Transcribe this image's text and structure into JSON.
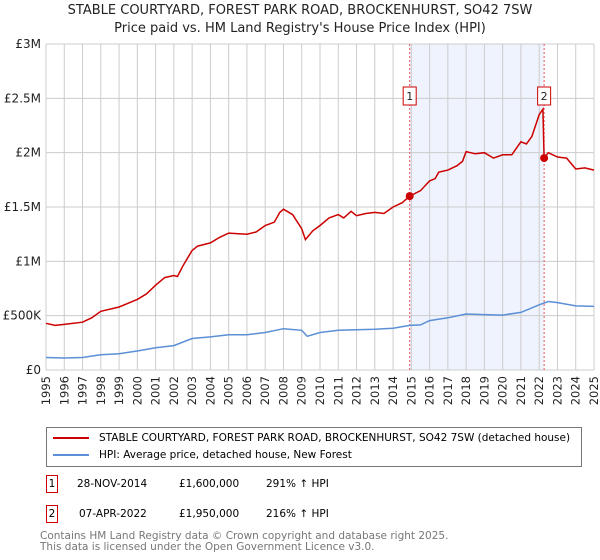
{
  "title_line1": "STABLE COURTYARD, FOREST PARK ROAD, BROCKENHURST, SO42 7SW",
  "title_line2": "Price paid vs. HM Land Registry's House Price Index (HPI)",
  "legend": {
    "property": "STABLE COURTYARD, FOREST PARK ROAD, BROCKENHURST, SO42 7SW (detached house)",
    "hpi": "HPI: Average price, detached house, New Forest"
  },
  "transactions": [
    {
      "num": "1",
      "date": "28-NOV-2014",
      "price": "£1,600,000",
      "hpi": "291% ↑ HPI"
    },
    {
      "num": "2",
      "date": "07-APR-2022",
      "price": "£1,950,000",
      "hpi": "216% ↑ HPI"
    }
  ],
  "footer": {
    "line1": "Contains HM Land Registry data © Crown copyright and database right 2025.",
    "line2": "This data is licensed under the Open Government Licence v3.0."
  },
  "colors": {
    "property": "#cc0000",
    "hpi": "#5b8fd6",
    "shade": "#eef3fd",
    "grid": "#cccccc"
  },
  "chart_data": {
    "type": "line",
    "title": "STABLE COURTYARD, FOREST PARK ROAD, BROCKENHURST, SO42 7SW",
    "subtitle": "Price paid vs. HM Land Registry's House Price Index (HPI)",
    "xlim": [
      1995,
      2025
    ],
    "ylim": [
      0,
      3000000
    ],
    "grid": true,
    "legend_placement": "below",
    "x_ticks": [
      "1995",
      "1996",
      "1997",
      "1998",
      "1999",
      "2000",
      "2001",
      "2002",
      "2003",
      "2004",
      "2005",
      "2006",
      "2007",
      "2008",
      "2009",
      "2010",
      "2011",
      "2012",
      "2013",
      "2014",
      "2015",
      "2016",
      "2017",
      "2018",
      "2019",
      "2020",
      "2021",
      "2022",
      "2023",
      "2024",
      "2025"
    ],
    "y_ticks": [
      {
        "v": 0,
        "label": "£0"
      },
      {
        "v": 500000,
        "label": "£500K"
      },
      {
        "v": 1000000,
        "label": "£1M"
      },
      {
        "v": 1500000,
        "label": "£1.5M"
      },
      {
        "v": 2000000,
        "label": "£2M"
      },
      {
        "v": 2500000,
        "label": "£2.5M"
      },
      {
        "v": 3000000,
        "label": "£3M"
      }
    ],
    "series": [
      {
        "name": "STABLE COURTYARD, FOREST PARK ROAD, BROCKENHURST, SO42 7SW (detached house)",
        "x": [
          1995,
          1995.5,
          1996,
          1997,
          1997.5,
          1998,
          1999,
          2000,
          2000.5,
          2001,
          2001.5,
          2002,
          2002.2,
          2002.5,
          2003,
          2003.3,
          2004,
          2004.5,
          2005,
          2006,
          2006.5,
          2007,
          2007.5,
          2007.8,
          2008,
          2008.5,
          2009,
          2009.2,
          2009.6,
          2010,
          2010.5,
          2011,
          2011.3,
          2011.7,
          2012,
          2012.5,
          2013,
          2013.5,
          2014,
          2014.5,
          2014.91,
          2015.5,
          2016,
          2016.3,
          2016.5,
          2017,
          2017.5,
          2017.8,
          2018,
          2018.5,
          2019,
          2019.5,
          2020,
          2020.5,
          2021,
          2021.3,
          2021.6,
          2022,
          2022.2,
          2022.27,
          2022.5,
          2023,
          2023.5,
          2024,
          2024.5,
          2025
        ],
        "y": [
          430000,
          410000,
          420000,
          440000,
          480000,
          540000,
          580000,
          650000,
          700000,
          780000,
          850000,
          870000,
          860000,
          960000,
          1100000,
          1140000,
          1170000,
          1220000,
          1260000,
          1250000,
          1270000,
          1330000,
          1360000,
          1450000,
          1480000,
          1430000,
          1300000,
          1200000,
          1280000,
          1330000,
          1400000,
          1430000,
          1400000,
          1460000,
          1420000,
          1440000,
          1450000,
          1440000,
          1500000,
          1540000,
          1600000,
          1650000,
          1740000,
          1760000,
          1820000,
          1840000,
          1880000,
          1920000,
          2010000,
          1990000,
          2000000,
          1950000,
          1980000,
          1980000,
          2100000,
          2080000,
          2150000,
          2350000,
          2400000,
          1950000,
          2000000,
          1960000,
          1950000,
          1850000,
          1860000,
          1840000
        ]
      },
      {
        "name": "HPI: Average price, detached house, New Forest",
        "x": [
          1995,
          1996,
          1997,
          1998,
          1999,
          2000,
          2001,
          2002,
          2003,
          2004,
          2005,
          2006,
          2007,
          2008,
          2009,
          2009.3,
          2010,
          2011,
          2012,
          2013,
          2014,
          2014.91,
          2015.5,
          2016,
          2017,
          2018,
          2019,
          2020,
          2021,
          2022,
          2022.5,
          2023,
          2024,
          2025
        ],
        "y": [
          115000,
          110000,
          115000,
          140000,
          150000,
          175000,
          205000,
          225000,
          290000,
          305000,
          325000,
          325000,
          345000,
          380000,
          365000,
          310000,
          345000,
          365000,
          370000,
          375000,
          385000,
          410000,
          415000,
          455000,
          480000,
          515000,
          510000,
          505000,
          530000,
          600000,
          630000,
          620000,
          590000,
          585000
        ]
      }
    ],
    "annotations": [
      {
        "label": "1",
        "x": 2014.91,
        "y": 1600000
      },
      {
        "label": "2",
        "x": 2022.27,
        "y": 1950000
      }
    ],
    "shaded_range": [
      2014.91,
      2022.27
    ]
  }
}
